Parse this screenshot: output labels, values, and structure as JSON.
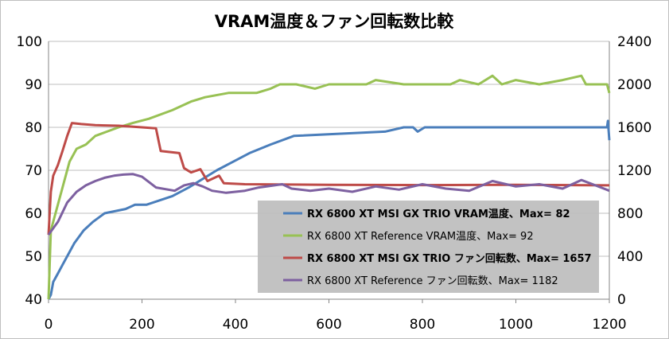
{
  "chart_data": {
    "type": "line",
    "title": "VRAM温度＆ファン回転数比較",
    "x_ticks": [
      "0",
      "200",
      "400",
      "600",
      "800",
      "1000",
      "1200"
    ],
    "xlim": [
      0,
      1200
    ],
    "y_left_ticks": [
      "40",
      "50",
      "60",
      "70",
      "80",
      "90",
      "100"
    ],
    "ylim_left": [
      40,
      100
    ],
    "y_right_ticks": [
      "0",
      "400",
      "800",
      "1200",
      "1600",
      "2000",
      "2400"
    ],
    "ylim_right": [
      0,
      2400
    ],
    "grid": "horizontal",
    "legend_position": "bottom-right",
    "series": [
      {
        "name": "RX 6800 XT MSI GX TRIO VRAM温度、Max= 82",
        "axis": "left",
        "color": "#4a7ebb",
        "bold": true,
        "points": [
          [
            0,
            40
          ],
          [
            5,
            41
          ],
          [
            10,
            44
          ],
          [
            20,
            46
          ],
          [
            30,
            48
          ],
          [
            40,
            50
          ],
          [
            55,
            53
          ],
          [
            75,
            56
          ],
          [
            95,
            58
          ],
          [
            120,
            60
          ],
          [
            165,
            61
          ],
          [
            185,
            62
          ],
          [
            210,
            62
          ],
          [
            265,
            64
          ],
          [
            300,
            66
          ],
          [
            330,
            68
          ],
          [
            360,
            70
          ],
          [
            395,
            72
          ],
          [
            430,
            74
          ],
          [
            475,
            76
          ],
          [
            525,
            78
          ],
          [
            720,
            79
          ],
          [
            760,
            80
          ],
          [
            780,
            80
          ],
          [
            790,
            79
          ],
          [
            805,
            80
          ],
          [
            900,
            80
          ],
          [
            1000,
            80
          ],
          [
            1100,
            80
          ],
          [
            1195,
            80
          ],
          [
            1197,
            81.5
          ],
          [
            1198,
            80
          ],
          [
            1200,
            77
          ]
        ]
      },
      {
        "name": "RX 6800 XT Reference VRAM温度、Max= 92",
        "axis": "left",
        "color": "#98c154",
        "bold": false,
        "points": [
          [
            0,
            40
          ],
          [
            5,
            56
          ],
          [
            15,
            60
          ],
          [
            30,
            66
          ],
          [
            45,
            72
          ],
          [
            60,
            75
          ],
          [
            80,
            76
          ],
          [
            100,
            78
          ],
          [
            125,
            79
          ],
          [
            150,
            80
          ],
          [
            180,
            81
          ],
          [
            215,
            82
          ],
          [
            265,
            84
          ],
          [
            305,
            86
          ],
          [
            335,
            87
          ],
          [
            385,
            88
          ],
          [
            445,
            88
          ],
          [
            475,
            89
          ],
          [
            495,
            90
          ],
          [
            530,
            90
          ],
          [
            570,
            89
          ],
          [
            600,
            90
          ],
          [
            680,
            90
          ],
          [
            700,
            91
          ],
          [
            760,
            90
          ],
          [
            800,
            90
          ],
          [
            860,
            90
          ],
          [
            880,
            91
          ],
          [
            920,
            90
          ],
          [
            950,
            92
          ],
          [
            970,
            90
          ],
          [
            1000,
            91
          ],
          [
            1050,
            90
          ],
          [
            1100,
            91
          ],
          [
            1140,
            92
          ],
          [
            1150,
            90
          ],
          [
            1195,
            90
          ],
          [
            1200,
            88
          ]
        ]
      },
      {
        "name": "RX 6800 XT MSI GX TRIO ファン回転数、Max= 1657",
        "axis": "right",
        "color": "#be4b48",
        "bold": true,
        "points": [
          [
            0,
            600
          ],
          [
            5,
            1000
          ],
          [
            10,
            1150
          ],
          [
            20,
            1250
          ],
          [
            30,
            1380
          ],
          [
            40,
            1520
          ],
          [
            50,
            1640
          ],
          [
            70,
            1630
          ],
          [
            100,
            1620
          ],
          [
            150,
            1615
          ],
          [
            200,
            1600
          ],
          [
            230,
            1590
          ],
          [
            240,
            1380
          ],
          [
            280,
            1360
          ],
          [
            290,
            1220
          ],
          [
            305,
            1180
          ],
          [
            325,
            1210
          ],
          [
            340,
            1100
          ],
          [
            365,
            1150
          ],
          [
            375,
            1080
          ],
          [
            420,
            1070
          ],
          [
            600,
            1065
          ],
          [
            800,
            1062
          ],
          [
            1000,
            1065
          ],
          [
            1200,
            1060
          ]
        ]
      },
      {
        "name": "RX 6800 XT Reference ファン回転数、Max= 1182",
        "axis": "right",
        "color": "#7d60a0",
        "bold": false,
        "points": [
          [
            0,
            600
          ],
          [
            20,
            720
          ],
          [
            40,
            900
          ],
          [
            60,
            1000
          ],
          [
            80,
            1060
          ],
          [
            100,
            1100
          ],
          [
            120,
            1130
          ],
          [
            140,
            1150
          ],
          [
            160,
            1160
          ],
          [
            180,
            1165
          ],
          [
            200,
            1140
          ],
          [
            230,
            1040
          ],
          [
            270,
            1010
          ],
          [
            290,
            1060
          ],
          [
            310,
            1080
          ],
          [
            330,
            1050
          ],
          [
            350,
            1010
          ],
          [
            380,
            990
          ],
          [
            420,
            1010
          ],
          [
            450,
            1040
          ],
          [
            500,
            1070
          ],
          [
            520,
            1030
          ],
          [
            560,
            1010
          ],
          [
            600,
            1030
          ],
          [
            650,
            1000
          ],
          [
            700,
            1050
          ],
          [
            750,
            1020
          ],
          [
            800,
            1070
          ],
          [
            850,
            1030
          ],
          [
            900,
            1010
          ],
          [
            950,
            1100
          ],
          [
            1000,
            1050
          ],
          [
            1050,
            1070
          ],
          [
            1100,
            1030
          ],
          [
            1140,
            1110
          ],
          [
            1170,
            1060
          ],
          [
            1200,
            1010
          ]
        ]
      }
    ]
  }
}
